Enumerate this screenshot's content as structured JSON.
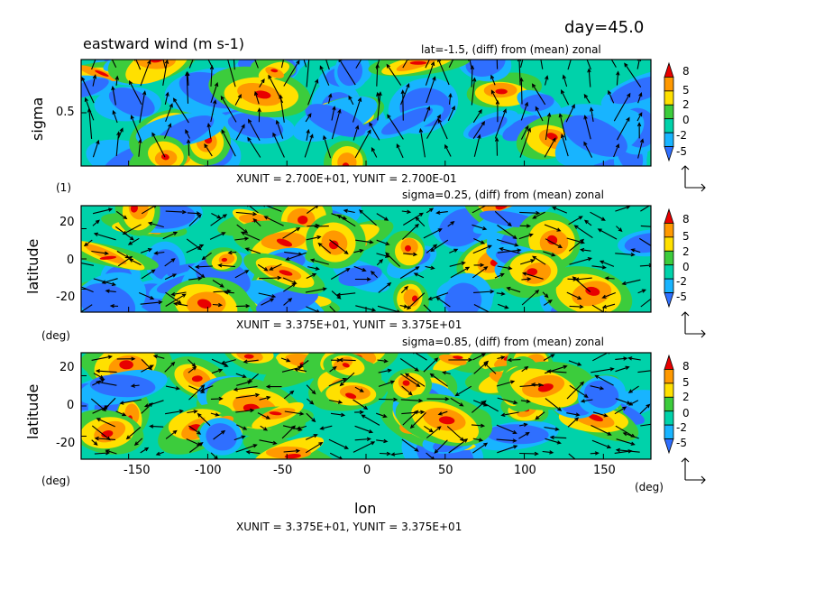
{
  "chart_data": {
    "type": "heatmap",
    "title": "eastward wind (m s-1)",
    "day_label": "day=45.0",
    "palette": [
      "#2f6fff",
      "#18b4ff",
      "#00d2aa",
      "#3ccc3c",
      "#ffe000",
      "#ff9900",
      "#e80000"
    ],
    "colorbar_levels": [
      "8",
      "5",
      "2",
      "0",
      "-2",
      "-5"
    ],
    "panels": [
      {
        "subtitle": "lat=-1.5, (diff) from (mean) zonal",
        "ylabel": "sigma",
        "yunit": "(1)",
        "yticks": [
          "0.5"
        ],
        "ylim": [
          0.0,
          1.0
        ],
        "xlim": [
          -180,
          180
        ],
        "vector_unit": "XUNIT = 2.700E+01, YUNIT = 2.700E-01",
        "seed": 7
      },
      {
        "subtitle": "sigma=0.25, (diff) from (mean) zonal",
        "ylabel": "latitude",
        "yunit": "(deg)",
        "yticks": [
          "20",
          "0",
          "-20"
        ],
        "ylim": [
          -30,
          30
        ],
        "xlim": [
          -180,
          180
        ],
        "vector_unit": "XUNIT = 3.375E+01, YUNIT = 3.375E+01",
        "seed": 13
      },
      {
        "subtitle": "sigma=0.85, (diff) from (mean) zonal",
        "ylabel": "latitude",
        "yunit": "(deg)",
        "yticks": [
          "20",
          "0",
          "-20"
        ],
        "ylim": [
          -30,
          30
        ],
        "xlim": [
          -180,
          180
        ],
        "vector_unit": "XUNIT = 3.375E+01, YUNIT = 3.375E+01",
        "seed": 29
      }
    ],
    "xticks": [
      "-150",
      "-100",
      "-50",
      "0",
      "50",
      "100",
      "150"
    ],
    "xtick_values": [
      -150,
      -100,
      -50,
      0,
      50,
      100,
      150
    ],
    "xlabel": "lon",
    "xunit": "(deg)"
  }
}
